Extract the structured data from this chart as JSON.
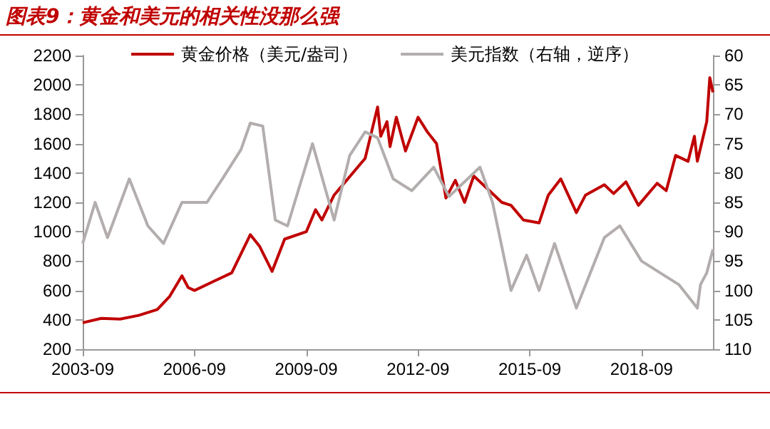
{
  "chart_data": {
    "type": "line",
    "title": "图表9：黄金和美元的相关性没那么强",
    "x": [
      "2003-09",
      "2004-03",
      "2004-09",
      "2005-03",
      "2005-09",
      "2006-01",
      "2006-05",
      "2006-07",
      "2006-09",
      "2007-03",
      "2007-09",
      "2008-03",
      "2008-06",
      "2008-10",
      "2009-02",
      "2009-09",
      "2009-12",
      "2010-02",
      "2010-06",
      "2010-12",
      "2011-04",
      "2011-08",
      "2011-09",
      "2011-11",
      "2011-12",
      "2012-02",
      "2012-05",
      "2012-09",
      "2012-12",
      "2013-03",
      "2013-06",
      "2013-09",
      "2013-12",
      "2014-03",
      "2014-06",
      "2014-12",
      "2015-03",
      "2015-07",
      "2015-12",
      "2016-03",
      "2016-07",
      "2016-12",
      "2017-03",
      "2017-09",
      "2017-12",
      "2018-04",
      "2018-08",
      "2018-12",
      "2019-02",
      "2019-05",
      "2019-08",
      "2019-12",
      "2020-02",
      "2020-03",
      "2020-06",
      "2020-07",
      "2020-08"
    ],
    "series": [
      {
        "name": "黄金价格（美元/盎司）",
        "color": "#c00000",
        "values": [
          380,
          410,
          405,
          430,
          470,
          560,
          700,
          620,
          600,
          660,
          720,
          980,
          900,
          730,
          950,
          1000,
          1150,
          1080,
          1250,
          1400,
          1500,
          1850,
          1650,
          1750,
          1580,
          1780,
          1550,
          1780,
          1680,
          1600,
          1230,
          1350,
          1200,
          1380,
          1320,
          1200,
          1180,
          1080,
          1060,
          1250,
          1360,
          1130,
          1250,
          1320,
          1260,
          1340,
          1180,
          1280,
          1330,
          1280,
          1520,
          1480,
          1650,
          1480,
          1750,
          2050,
          1950
        ]
      },
      {
        "name": "美元指数（右轴，逆序）",
        "color": "#b3adad",
        "axis": "y2",
        "x": [
          "2003-09",
          "2004-01",
          "2004-05",
          "2004-12",
          "2005-06",
          "2005-11",
          "2006-05",
          "2007-01",
          "2007-06",
          "2007-12",
          "2008-03",
          "2008-07",
          "2008-11",
          "2009-03",
          "2009-11",
          "2010-06",
          "2010-11",
          "2011-04",
          "2011-08",
          "2012-01",
          "2012-07",
          "2013-02",
          "2013-07",
          "2014-05",
          "2014-09",
          "2015-03",
          "2015-08",
          "2015-12",
          "2016-05",
          "2016-12",
          "2017-09",
          "2018-02",
          "2018-09",
          "2019-09",
          "2020-03",
          "2020-04",
          "2020-06",
          "2020-08"
        ],
        "values": [
          92,
          85,
          91,
          81,
          89,
          92,
          85,
          85,
          81,
          76,
          71.5,
          72,
          88,
          89,
          75,
          88,
          77,
          73,
          74,
          81,
          83,
          79,
          84,
          79,
          85,
          100,
          94,
          100,
          92,
          103,
          91,
          89,
          95,
          99,
          103,
          99,
          97,
          93
        ]
      }
    ],
    "xlim": [
      "2003-09",
      "2020-08"
    ],
    "xticks": [
      "2003-09",
      "2006-09",
      "2009-09",
      "2012-09",
      "2015-09",
      "2018-09"
    ],
    "ylim": [
      200,
      2200
    ],
    "yticks": [
      200,
      400,
      600,
      800,
      1000,
      1200,
      1400,
      1600,
      1800,
      2000,
      2200
    ],
    "y2lim": [
      110,
      60
    ],
    "y2ticks": [
      60,
      65,
      70,
      75,
      80,
      85,
      90,
      95,
      100,
      105,
      110
    ],
    "legend": "top",
    "grid": false
  }
}
